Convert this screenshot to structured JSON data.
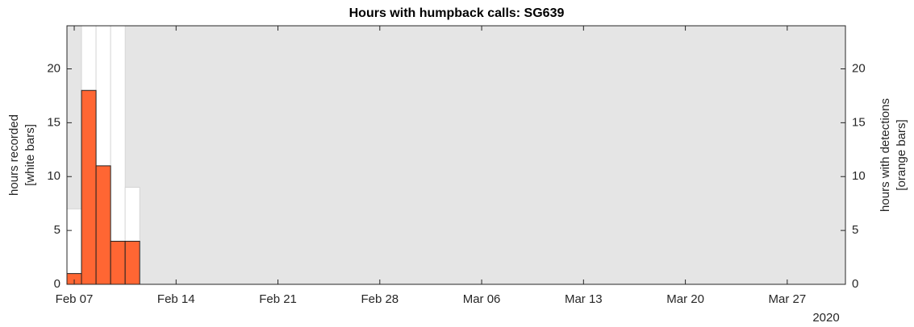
{
  "chart_data": {
    "type": "bar",
    "title": "Hours with humpback calls: SG639",
    "ylabel": [
      "hours recorded",
      "[white bars]"
    ],
    "y2label": [
      "hours with detections",
      "[orange bars]"
    ],
    "x_year_label": "2020",
    "x": [
      "2020-02-07",
      "2020-02-08",
      "2020-02-09",
      "2020-02-10",
      "2020-02-11"
    ],
    "series": [
      {
        "name": "hours recorded",
        "color": "#ffffff",
        "values": [
          7,
          24,
          24,
          24,
          9
        ]
      },
      {
        "name": "hours with detections",
        "color": "#ff6633",
        "values": [
          1,
          18,
          11,
          4,
          4
        ],
        "axis": "y2"
      }
    ],
    "xlim": [
      "2020-02-06T12:00:00Z",
      "2020-03-31T00:00:00Z"
    ],
    "xticks": [
      {
        "value": "2020-02-07",
        "label": "Feb 07"
      },
      {
        "value": "2020-02-14",
        "label": "Feb 14"
      },
      {
        "value": "2020-02-21",
        "label": "Feb 21"
      },
      {
        "value": "2020-02-28",
        "label": "Feb 28"
      },
      {
        "value": "2020-03-06",
        "label": "Mar 06"
      },
      {
        "value": "2020-03-13",
        "label": "Mar 13"
      },
      {
        "value": "2020-03-20",
        "label": "Mar 20"
      },
      {
        "value": "2020-03-27",
        "label": "Mar 27"
      }
    ],
    "ylim": [
      0,
      24
    ],
    "yticks": [
      0,
      5,
      10,
      15,
      20
    ],
    "y2lim": [
      0,
      24
    ],
    "y2ticks": [
      0,
      5,
      10,
      15,
      20
    ],
    "background": "#e5e5e5",
    "grid": false
  }
}
